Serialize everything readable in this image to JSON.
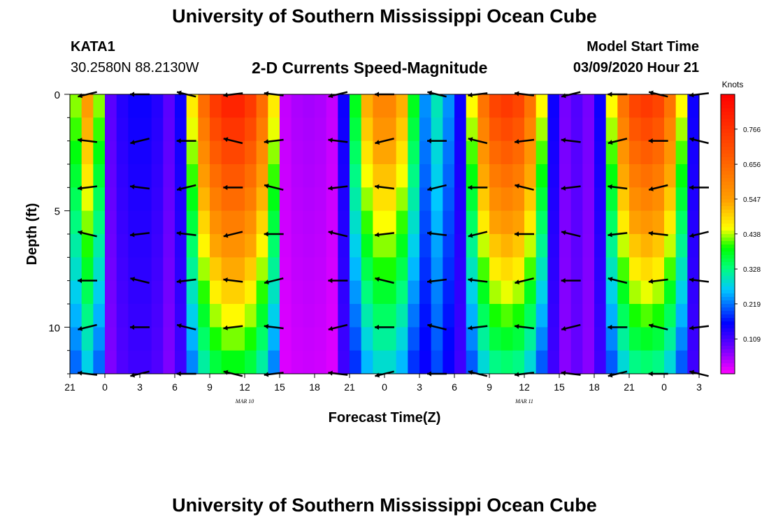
{
  "header": {
    "title": "University of Southern Mississippi Ocean Cube",
    "station": "KATA1",
    "coords": "30.2580N 88.2130W",
    "subtitle": "2-D Currents Speed-Magnitude",
    "model_label": "Model Start Time",
    "model_time": "03/09/2020 Hour 21"
  },
  "footer": {
    "title": "University of Southern Mississippi Ocean Cube"
  },
  "chart_data": {
    "type": "heatmap",
    "title": "2-D Currents Speed-Magnitude",
    "xlabel": "Forecast Time(Z)",
    "ylabel": "Depth (ft)",
    "x_tick_labels": [
      "21",
      "0",
      "3",
      "6",
      "9",
      "12",
      "15",
      "18",
      "21",
      "0",
      "3",
      "6",
      "9",
      "12",
      "15",
      "18",
      "21",
      "0",
      "3"
    ],
    "date_labels": [
      {
        "text": "MAR 10",
        "at_hour": 12
      },
      {
        "text": "MAR 11",
        "at_hour": 36
      }
    ],
    "x_range_hours": [
      -3,
      51
    ],
    "y_tick_labels": [
      "0",
      "5",
      "10"
    ],
    "ylim": [
      0,
      12
    ],
    "colorbar": {
      "unit": "Knots",
      "tick_labels": [
        "0.766",
        "0.656",
        "0.547",
        "0.438",
        "0.328",
        "0.219",
        "0.109"
      ],
      "tick_values": [
        0.766,
        0.656,
        0.547,
        0.438,
        0.328,
        0.219,
        0.109
      ],
      "range": [
        0.0,
        0.875
      ]
    },
    "depths_ft": [
      0,
      1,
      2,
      3,
      4,
      5,
      6,
      7,
      8,
      9,
      10,
      11,
      12
    ],
    "speed_knots_by_hour_profile": [
      {
        "hour_range": [
          -3,
          0
        ],
        "surface": 0.55,
        "bottom": 0.15
      },
      {
        "hour_range": [
          0,
          6
        ],
        "surface": 0.15,
        "bottom": 0.1
      },
      {
        "hour_range": [
          7,
          15
        ],
        "surface": 0.8,
        "bottom": 0.2
      },
      {
        "hour_range": [
          15,
          20
        ],
        "surface": 0.05,
        "bottom": 0.02
      },
      {
        "hour_range": [
          21,
          27
        ],
        "surface": 0.6,
        "bottom": 0.15
      },
      {
        "hour_range": [
          27,
          30
        ],
        "surface": 0.3,
        "bottom": 0.15
      },
      {
        "hour_range": [
          31,
          38
        ],
        "surface": 0.75,
        "bottom": 0.15
      },
      {
        "hour_range": [
          39,
          42
        ],
        "surface": 0.1,
        "bottom": 0.08
      },
      {
        "hour_range": [
          43,
          50
        ],
        "surface": 0.75,
        "bottom": 0.15
      }
    ],
    "arrow_columns_hours": [
      -1.5,
      3,
      7,
      11,
      14.5,
      20,
      24,
      28.5,
      32,
      36,
      40,
      44,
      47.5,
      51
    ],
    "arrow_depths_ft": [
      0,
      2,
      4,
      6,
      8,
      10,
      12
    ]
  }
}
